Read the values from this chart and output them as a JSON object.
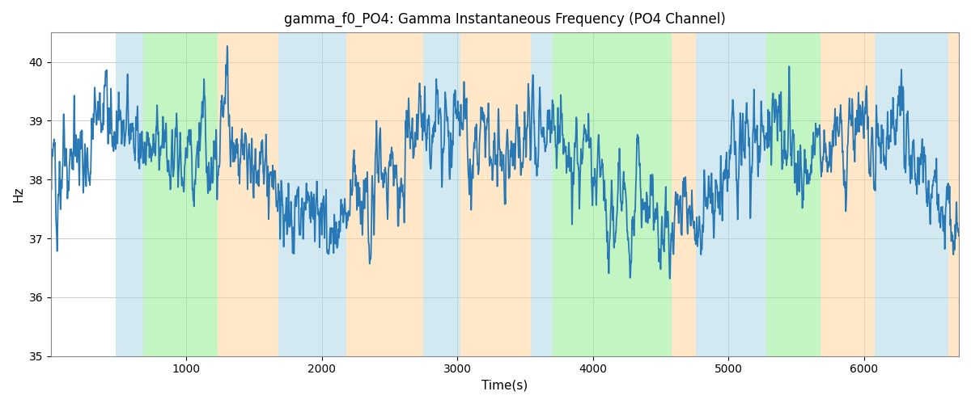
{
  "title": "gamma_f0_PO4: Gamma Instantaneous Frequency (PO4 Channel)",
  "xlabel": "Time(s)",
  "ylabel": "Hz",
  "xlim": [
    0,
    6700
  ],
  "ylim": [
    35,
    40.5
  ],
  "yticks": [
    35,
    36,
    37,
    38,
    39,
    40
  ],
  "xticks": [
    1000,
    2000,
    3000,
    4000,
    5000,
    6000
  ],
  "line_color": "#2878b5",
  "line_width": 1.3,
  "bg_color": "#ffffff",
  "grid_color": "#aaaaaa",
  "bands": [
    {
      "start": 480,
      "end": 680,
      "color": "#add8e6",
      "alpha": 0.55
    },
    {
      "start": 680,
      "end": 1230,
      "color": "#90ee90",
      "alpha": 0.55
    },
    {
      "start": 1230,
      "end": 1680,
      "color": "#ffd59a",
      "alpha": 0.55
    },
    {
      "start": 1680,
      "end": 2180,
      "color": "#add8e6",
      "alpha": 0.55
    },
    {
      "start": 2180,
      "end": 2750,
      "color": "#ffd59a",
      "alpha": 0.55
    },
    {
      "start": 2750,
      "end": 3020,
      "color": "#add8e6",
      "alpha": 0.55
    },
    {
      "start": 3020,
      "end": 3540,
      "color": "#ffd59a",
      "alpha": 0.55
    },
    {
      "start": 3540,
      "end": 3700,
      "color": "#add8e6",
      "alpha": 0.55
    },
    {
      "start": 3700,
      "end": 4580,
      "color": "#90ee90",
      "alpha": 0.55
    },
    {
      "start": 4580,
      "end": 4760,
      "color": "#ffd59a",
      "alpha": 0.55
    },
    {
      "start": 4760,
      "end": 5280,
      "color": "#add8e6",
      "alpha": 0.55
    },
    {
      "start": 5280,
      "end": 5680,
      "color": "#90ee90",
      "alpha": 0.55
    },
    {
      "start": 5680,
      "end": 6080,
      "color": "#ffd59a",
      "alpha": 0.55
    },
    {
      "start": 6080,
      "end": 6620,
      "color": "#add8e6",
      "alpha": 0.55
    },
    {
      "start": 6620,
      "end": 6750,
      "color": "#ffd59a",
      "alpha": 0.55
    }
  ],
  "seed": 12345
}
